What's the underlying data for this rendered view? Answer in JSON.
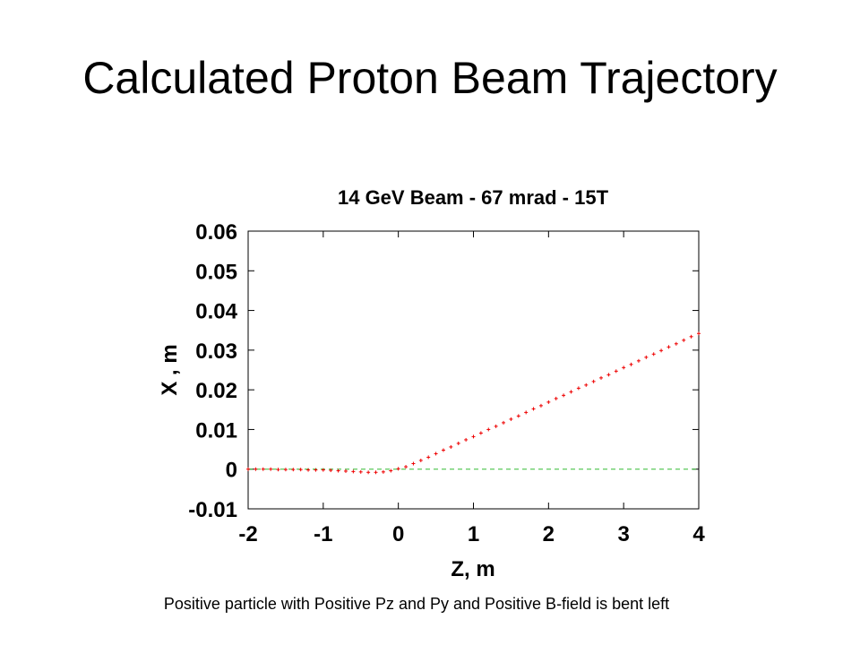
{
  "slide": {
    "title": "Calculated Proton Beam Trajectory",
    "caption": "Positive particle with Positive Pz and Py and Positive B-field is bent left"
  },
  "colors": {
    "trajectory": "#ee0000",
    "reference_line": "#33bb33",
    "axes": "#000000"
  },
  "chart_data": {
    "type": "scatter",
    "title": "14 GeV Beam - 67 mrad - 15T",
    "xlabel": "Z, m",
    "ylabel": "X , m",
    "xlim": [
      -2,
      4
    ],
    "ylim": [
      -0.01,
      0.06
    ],
    "xticks": [
      "-2",
      "-1",
      "0",
      "1",
      "2",
      "3",
      "4"
    ],
    "yticks": [
      "-0.01",
      "0",
      "0.01",
      "0.02",
      "0.03",
      "0.04",
      "0.05",
      "0.06"
    ],
    "grid": false,
    "reference_line": {
      "y": 0,
      "style": "dashed"
    },
    "series": [
      {
        "marker": "+",
        "x": [
          -2.0,
          -1.9,
          -1.8,
          -1.7,
          -1.6,
          -1.5,
          -1.4,
          -1.3,
          -1.2,
          -1.1,
          -1.0,
          -0.9,
          -0.8,
          -0.7,
          -0.6,
          -0.5,
          -0.4,
          -0.3,
          -0.2,
          -0.1,
          0.0,
          0.1,
          0.2,
          0.3,
          0.4,
          0.5,
          0.6,
          0.7,
          0.8,
          0.9,
          1.0,
          1.1,
          1.2,
          1.3,
          1.4,
          1.5,
          1.6,
          1.7,
          1.8,
          1.9,
          2.0,
          2.1,
          2.2,
          2.3,
          2.4,
          2.5,
          2.6,
          2.7,
          2.8,
          2.9,
          3.0,
          3.1,
          3.2,
          3.3,
          3.4,
          3.5,
          3.6,
          3.7,
          3.8,
          3.9,
          4.0
        ],
        "y": [
          0.0,
          0.0,
          0.0,
          0.0,
          -0.0001,
          -0.0001,
          -0.0001,
          -0.0001,
          -0.0002,
          -0.0002,
          -0.0002,
          -0.0003,
          -0.0004,
          -0.0005,
          -0.0006,
          -0.0007,
          -0.0008,
          -0.0008,
          -0.0007,
          -0.0004,
          0.0001,
          0.0006,
          0.0014,
          0.0022,
          0.003,
          0.0039,
          0.0048,
          0.0056,
          0.0065,
          0.0074,
          0.0082,
          0.0091,
          0.01,
          0.0108,
          0.0117,
          0.0126,
          0.0134,
          0.0143,
          0.0152,
          0.016,
          0.0169,
          0.0178,
          0.0186,
          0.0195,
          0.0204,
          0.0212,
          0.0221,
          0.023,
          0.0238,
          0.0247,
          0.0256,
          0.0264,
          0.0273,
          0.0282,
          0.029,
          0.0299,
          0.0308,
          0.0316,
          0.0325,
          0.0334,
          0.0342
        ]
      }
    ]
  }
}
